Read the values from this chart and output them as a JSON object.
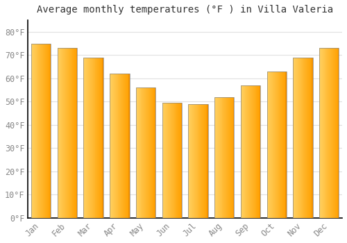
{
  "title": "Average monthly temperatures (°F ) in Villa Valeria",
  "months": [
    "Jan",
    "Feb",
    "Mar",
    "Apr",
    "May",
    "Jun",
    "Jul",
    "Aug",
    "Sep",
    "Oct",
    "Nov",
    "Dec"
  ],
  "values": [
    75,
    73,
    69,
    62,
    56,
    49.5,
    49,
    52,
    57,
    63,
    69,
    73
  ],
  "bar_color_main": "#FFA500",
  "bar_color_light": "#FFD050",
  "bar_color_dark": "#E08000",
  "background_color": "#FFFFFF",
  "grid_color": "#E0E0E0",
  "title_color": "#333333",
  "tick_color": "#888888",
  "axis_color": "#000000",
  "ylim": [
    0,
    85
  ],
  "yticks": [
    0,
    10,
    20,
    30,
    40,
    50,
    60,
    70,
    80
  ],
  "ytick_labels": [
    "0°F",
    "10°F",
    "20°F",
    "30°F",
    "40°F",
    "50°F",
    "60°F",
    "70°F",
    "80°F"
  ],
  "title_fontsize": 10,
  "tick_fontsize": 8.5,
  "bar_width": 0.75
}
